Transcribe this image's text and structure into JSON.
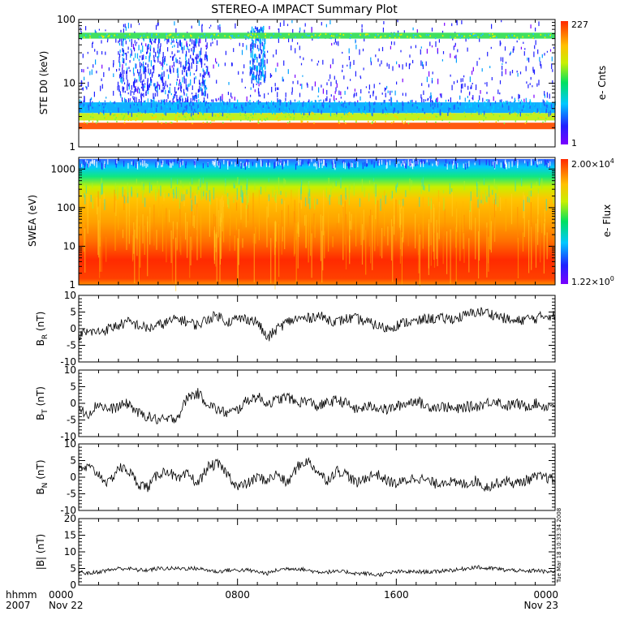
{
  "title": "STEREO-A IMPACT Summary Plot",
  "timestamp": "Tue Mar 18 10:33:34 2008",
  "time_axis": {
    "row1_label": "hhmm",
    "row2_label": "2007",
    "ticks": [
      {
        "t": 0,
        "top": "0000",
        "bottom": "Nov 22"
      },
      {
        "t": 8,
        "top": "0800",
        "bottom": ""
      },
      {
        "t": 16,
        "top": "1600",
        "bottom": ""
      },
      {
        "t": 24,
        "top": "0000",
        "bottom": "Nov 23"
      }
    ],
    "range_hours": [
      0,
      24
    ]
  },
  "chart_data": [
    {
      "type": "heatmap",
      "id": "ste",
      "ylabel": "STE D0 (keV)",
      "yscale": "log",
      "ylim": [
        1,
        100
      ],
      "yticks": [
        "1",
        "10",
        "100"
      ],
      "colorbar_label": "e- Cnts",
      "colorbar_range": [
        1,
        227
      ],
      "colorbar_ticks": {
        "max": "227",
        "min": "1"
      },
      "bands": [
        {
          "name": "",
          "energy_keV": [
            1.9,
            2.4
          ],
          "level": "red-orange"
        },
        {
          "name": "",
          "energy_keV": [
            2.6,
            3.4
          ],
          "level": "yellow-green"
        },
        {
          "name": "",
          "energy_keV": [
            3.4,
            5
          ],
          "level": "cyan-blue"
        },
        {
          "name": "",
          "energy_keV": [
            50,
            62
          ],
          "level": "green-yellow"
        }
      ]
    },
    {
      "type": "heatmap",
      "id": "swea",
      "ylabel": "SWEA (eV)",
      "yscale": "log",
      "ylim": [
        1,
        2000
      ],
      "yticks": [
        "1",
        "10",
        "100",
        "1000"
      ],
      "colorbar_label": "e- Flux",
      "colorbar_range": [
        1.22,
        20000
      ],
      "colorbar_ticks": {
        "max_mant": "2.00×10",
        "max_exp": "4",
        "min_mant": "1.22×10",
        "min_exp": "0"
      }
    },
    {
      "type": "line",
      "id": "br",
      "ylabel_main": "B",
      "ylabel_sub": "R",
      "ylabel_unit": " (nT)",
      "ylim": [
        -10,
        10
      ],
      "yticks": [
        -10,
        -5,
        0,
        5,
        10
      ],
      "x_hours": [
        0,
        0.5,
        1,
        1.5,
        2,
        2.5,
        3,
        3.5,
        4,
        4.5,
        5,
        5.5,
        6,
        6.5,
        7,
        7.5,
        8,
        8.5,
        9,
        9.5,
        10,
        10.5,
        11,
        11.5,
        12,
        12.5,
        13,
        13.5,
        14,
        14.5,
        15,
        15.5,
        16,
        16.5,
        17,
        17.5,
        18,
        18.5,
        19,
        19.5,
        20,
        20.5,
        21,
        21.5,
        22,
        22.5,
        23,
        23.5,
        24
      ],
      "values": [
        -2,
        -1,
        -1,
        0,
        1,
        2,
        1,
        0,
        1,
        2,
        3,
        2,
        1,
        3,
        4,
        2,
        3,
        3,
        2,
        -3,
        0,
        2,
        3,
        3,
        4,
        3,
        2,
        3,
        3,
        2,
        1,
        0,
        1,
        2,
        2,
        3,
        3,
        3,
        3,
        4,
        5,
        5,
        4,
        3,
        2,
        3,
        3,
        4,
        4
      ]
    },
    {
      "type": "line",
      "id": "bt",
      "ylabel_main": "B",
      "ylabel_sub": "T",
      "ylabel_unit": " (nT)",
      "ylim": [
        -10,
        10
      ],
      "yticks": [
        -10,
        -5,
        0,
        5,
        10
      ],
      "x_hours": [
        0,
        0.5,
        1,
        1.5,
        2,
        2.5,
        3,
        3.5,
        4,
        4.5,
        5,
        5.5,
        6,
        6.5,
        7,
        7.5,
        8,
        8.5,
        9,
        9.5,
        10,
        10.5,
        11,
        11.5,
        12,
        12.5,
        13,
        13.5,
        14,
        14.5,
        15,
        15.5,
        16,
        16.5,
        17,
        17.5,
        18,
        18.5,
        19,
        19.5,
        20,
        20.5,
        21,
        21.5,
        22,
        22.5,
        23,
        23.5,
        24
      ],
      "values": [
        -2,
        -3,
        0,
        -2,
        -1,
        0,
        -3,
        -4,
        -5,
        -5,
        -4,
        2,
        3,
        0,
        -2,
        -3,
        -2,
        1,
        2,
        0,
        1,
        2,
        0,
        1,
        -1,
        0,
        1,
        0,
        -2,
        -1,
        -1,
        -2,
        -1,
        0,
        1,
        -1,
        -1,
        -1,
        -2,
        -1,
        -1,
        0,
        1,
        -1,
        0,
        -1,
        0,
        -1,
        0
      ]
    },
    {
      "type": "line",
      "id": "bn",
      "ylabel_main": "B",
      "ylabel_sub": "N",
      "ylabel_unit": " (nT)",
      "ylim": [
        -10,
        10
      ],
      "yticks": [
        -10,
        -5,
        0,
        5,
        10
      ],
      "x_hours": [
        0,
        0.5,
        1,
        1.5,
        2,
        2.5,
        3,
        3.5,
        4,
        4.5,
        5,
        5.5,
        6,
        6.5,
        7,
        7.5,
        8,
        8.5,
        9,
        9.5,
        10,
        10.5,
        11,
        11.5,
        12,
        12.5,
        13,
        13.5,
        14,
        14.5,
        15,
        15.5,
        16,
        16.5,
        17,
        17.5,
        18,
        18.5,
        19,
        19.5,
        20,
        20.5,
        21,
        21.5,
        22,
        22.5,
        23,
        23.5,
        24
      ],
      "values": [
        2,
        3,
        1,
        -2,
        3,
        2,
        -2,
        -3,
        1,
        2,
        -1,
        1,
        -2,
        3,
        4,
        1,
        -3,
        -2,
        0,
        -1,
        1,
        -2,
        3,
        5,
        2,
        -1,
        2,
        1,
        -2,
        0,
        1,
        -1,
        -2,
        -1,
        0,
        -1,
        -2,
        -1,
        -2,
        -2,
        -1,
        -3,
        -2,
        -1,
        -2,
        -1,
        0,
        0,
        -1
      ]
    },
    {
      "type": "line",
      "id": "bmag",
      "ylabel_main": "|B|",
      "ylabel_sub": "",
      "ylabel_unit": " (nT)",
      "ylim": [
        0,
        20
      ],
      "yticks": [
        0,
        5,
        10,
        15,
        20
      ],
      "x_hours": [
        0,
        0.5,
        1,
        1.5,
        2,
        2.5,
        3,
        3.5,
        4,
        4.5,
        5,
        5.5,
        6,
        6.5,
        7,
        7.5,
        8,
        8.5,
        9,
        9.5,
        10,
        10.5,
        11,
        11.5,
        12,
        12.5,
        13,
        13.5,
        14,
        14.5,
        15,
        15.5,
        16,
        16.5,
        17,
        17.5,
        18,
        18.5,
        19,
        19.5,
        20,
        20.5,
        21,
        21.5,
        22,
        22.5,
        23,
        23.5,
        24
      ],
      "values": [
        4,
        3.5,
        4,
        4.5,
        5,
        5,
        4.5,
        4.5,
        5,
        5,
        5,
        5,
        5,
        4.5,
        4,
        4.5,
        4.5,
        4.5,
        4,
        3.5,
        4.5,
        5,
        5,
        4.5,
        4,
        4,
        4,
        4,
        3.5,
        3.5,
        3,
        3.5,
        4,
        4,
        4,
        4,
        4,
        4.5,
        4.5,
        5,
        5.5,
        5,
        5,
        4.5,
        4.5,
        4,
        4.5,
        4,
        4
      ]
    }
  ]
}
